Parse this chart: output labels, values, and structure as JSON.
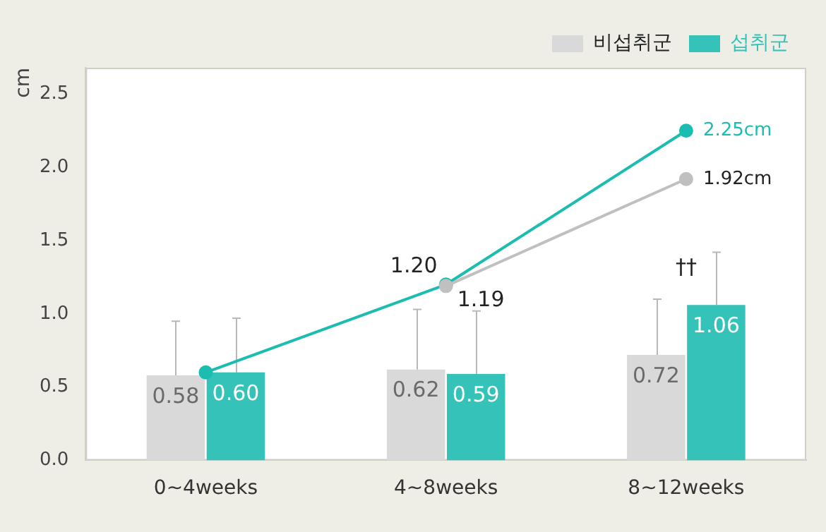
{
  "chart_data": {
    "type": "bar",
    "ylabel": "cm",
    "categories": [
      "0~4weeks",
      "4~8weeks",
      "8~12weeks"
    ],
    "series": [
      {
        "name": "비섭취군",
        "color": "#d9d9d9",
        "values": [
          0.58,
          0.62,
          0.72
        ],
        "value_labels": [
          "0.58",
          "0.62",
          "0.72"
        ],
        "errors": [
          [
            0.58,
            0.95
          ],
          [
            0.62,
            1.03
          ],
          [
            0.72,
            1.1
          ]
        ]
      },
      {
        "name": "섭취군",
        "color": "#35c2b9",
        "values": [
          0.6,
          0.59,
          1.06
        ],
        "value_labels": [
          "0.60",
          "0.59",
          "1.06"
        ],
        "errors": [
          [
            0.6,
            0.97
          ],
          [
            0.59,
            1.02
          ],
          [
            1.06,
            1.42
          ]
        ]
      },
      {
        "type": "line",
        "color": "#c0c0c0",
        "values": [
          null,
          1.19,
          1.92
        ],
        "value_labels": [
          null,
          "1.19",
          "1.92cm"
        ]
      },
      {
        "type": "line",
        "color": "#1bbdb0",
        "values": [
          0.6,
          1.2,
          2.25
        ],
        "value_labels": [
          null,
          "1.20",
          "2.25cm"
        ]
      }
    ],
    "marker": "circle",
    "legend": "top right",
    "grid": false,
    "ylim": [
      0,
      2.68
    ],
    "yticks": [
      {
        "value": 0,
        "label": "0.0"
      },
      {
        "value": 0.5,
        "label": "0.5"
      },
      {
        "value": 1,
        "label": "1.0"
      },
      {
        "value": 1.5,
        "label": "1.5"
      },
      {
        "value": 2,
        "label": "2.0"
      },
      {
        "value": 2.5,
        "label": "2.5"
      }
    ],
    "annotations": [
      "††"
    ]
  }
}
